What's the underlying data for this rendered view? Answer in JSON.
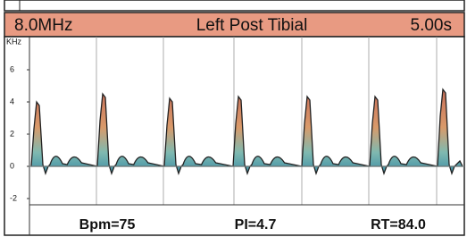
{
  "header": {
    "left": "8.0MHz",
    "center": "Left Post Tibial",
    "right": "5.00s"
  },
  "axis": {
    "unit": "KHz",
    "ticks": [
      6,
      4,
      2,
      0,
      -2
    ]
  },
  "footer": {
    "bpm": "Bpm=75",
    "pi": "PI=4.7",
    "rt": "RT=84.0"
  }
}
